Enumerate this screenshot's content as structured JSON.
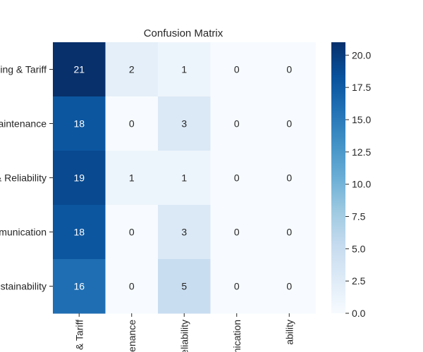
{
  "chart_data": {
    "type": "heatmap",
    "title": "Confusion Matrix",
    "row_labels": [
      "Billing & Tariff",
      "Maintenance",
      "Supply & Reliability",
      "Communication",
      "Sustainability"
    ],
    "col_labels": [
      "Billing & Tariff",
      "Maintenance",
      "Supply & Reliability",
      "Communication",
      "Sustainability"
    ],
    "row_labels_visible": [
      "ing & Tariff",
      "aintenance",
      "& Reliability",
      "munication",
      "stainability"
    ],
    "col_labels_visible": [
      "& Tariff",
      "enance",
      "eliability",
      "nication",
      "ability"
    ],
    "values": [
      [
        21,
        2,
        1,
        0,
        0
      ],
      [
        18,
        0,
        3,
        0,
        0
      ],
      [
        19,
        1,
        1,
        0,
        0
      ],
      [
        18,
        0,
        3,
        0,
        0
      ],
      [
        16,
        0,
        5,
        0,
        0
      ]
    ],
    "vmin": 0,
    "vmax": 21,
    "colormap": "Blues",
    "colorbar_ticks": [
      "0.0",
      "2.5",
      "5.0",
      "7.5",
      "10.0",
      "12.5",
      "15.0",
      "17.5",
      "20.0"
    ],
    "colorbar_tick_values": [
      0,
      2.5,
      5,
      7.5,
      10,
      12.5,
      15,
      17.5,
      20
    ],
    "colors": {
      "low": "#f7fbff",
      "high": "#08306b"
    }
  }
}
